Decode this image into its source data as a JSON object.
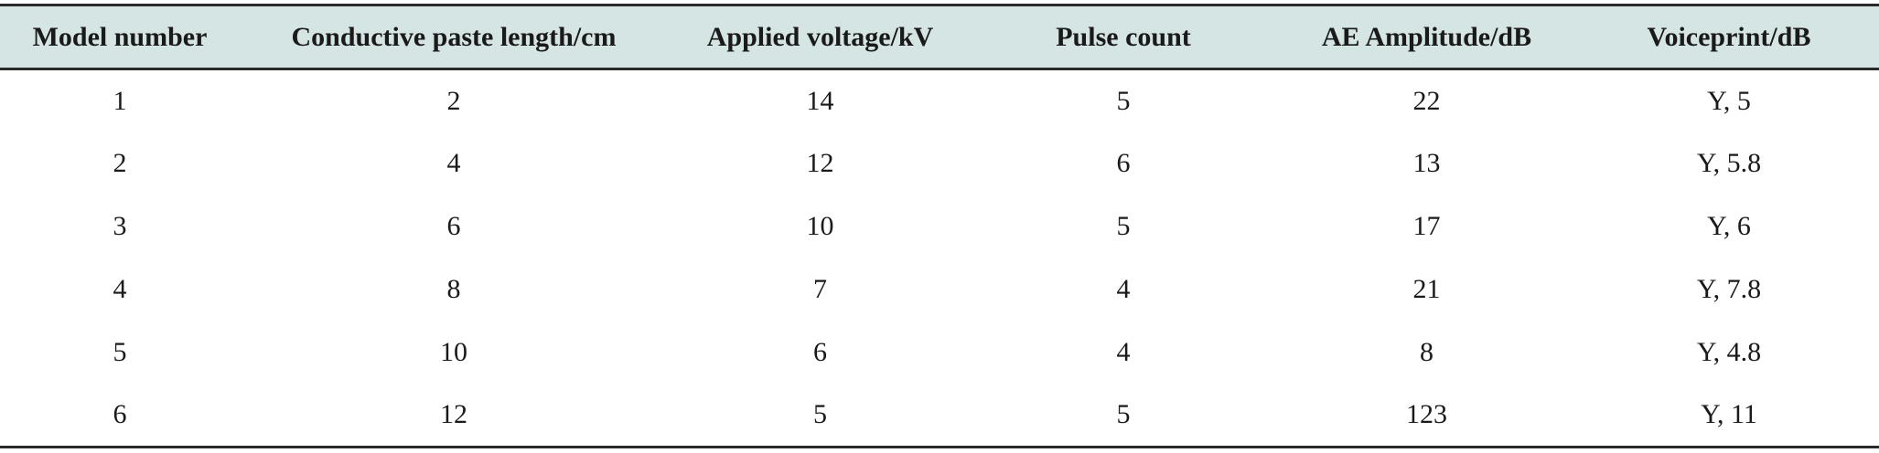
{
  "table": {
    "headers": [
      "Model number",
      "Conductive paste length/cm",
      "Applied voltage/kV",
      "Pulse count",
      "AE Amplitude/dB",
      "Voiceprint/dB"
    ],
    "rows": [
      [
        "1",
        "2",
        "14",
        "5",
        "22",
        "Y, 5"
      ],
      [
        "2",
        "4",
        "12",
        "6",
        "13",
        "Y, 5.8"
      ],
      [
        "3",
        "6",
        "10",
        "5",
        "17",
        "Y, 6"
      ],
      [
        "4",
        "8",
        "7",
        "4",
        "21",
        "Y, 7.8"
      ],
      [
        "5",
        "10",
        "6",
        "4",
        "8",
        "Y, 4.8"
      ],
      [
        "6",
        "12",
        "5",
        "5",
        "123",
        "Y, 11"
      ]
    ]
  },
  "colors": {
    "header_background": "#d5e5e4",
    "rule": "#2a2a2a",
    "text": "#1a1a1a"
  }
}
